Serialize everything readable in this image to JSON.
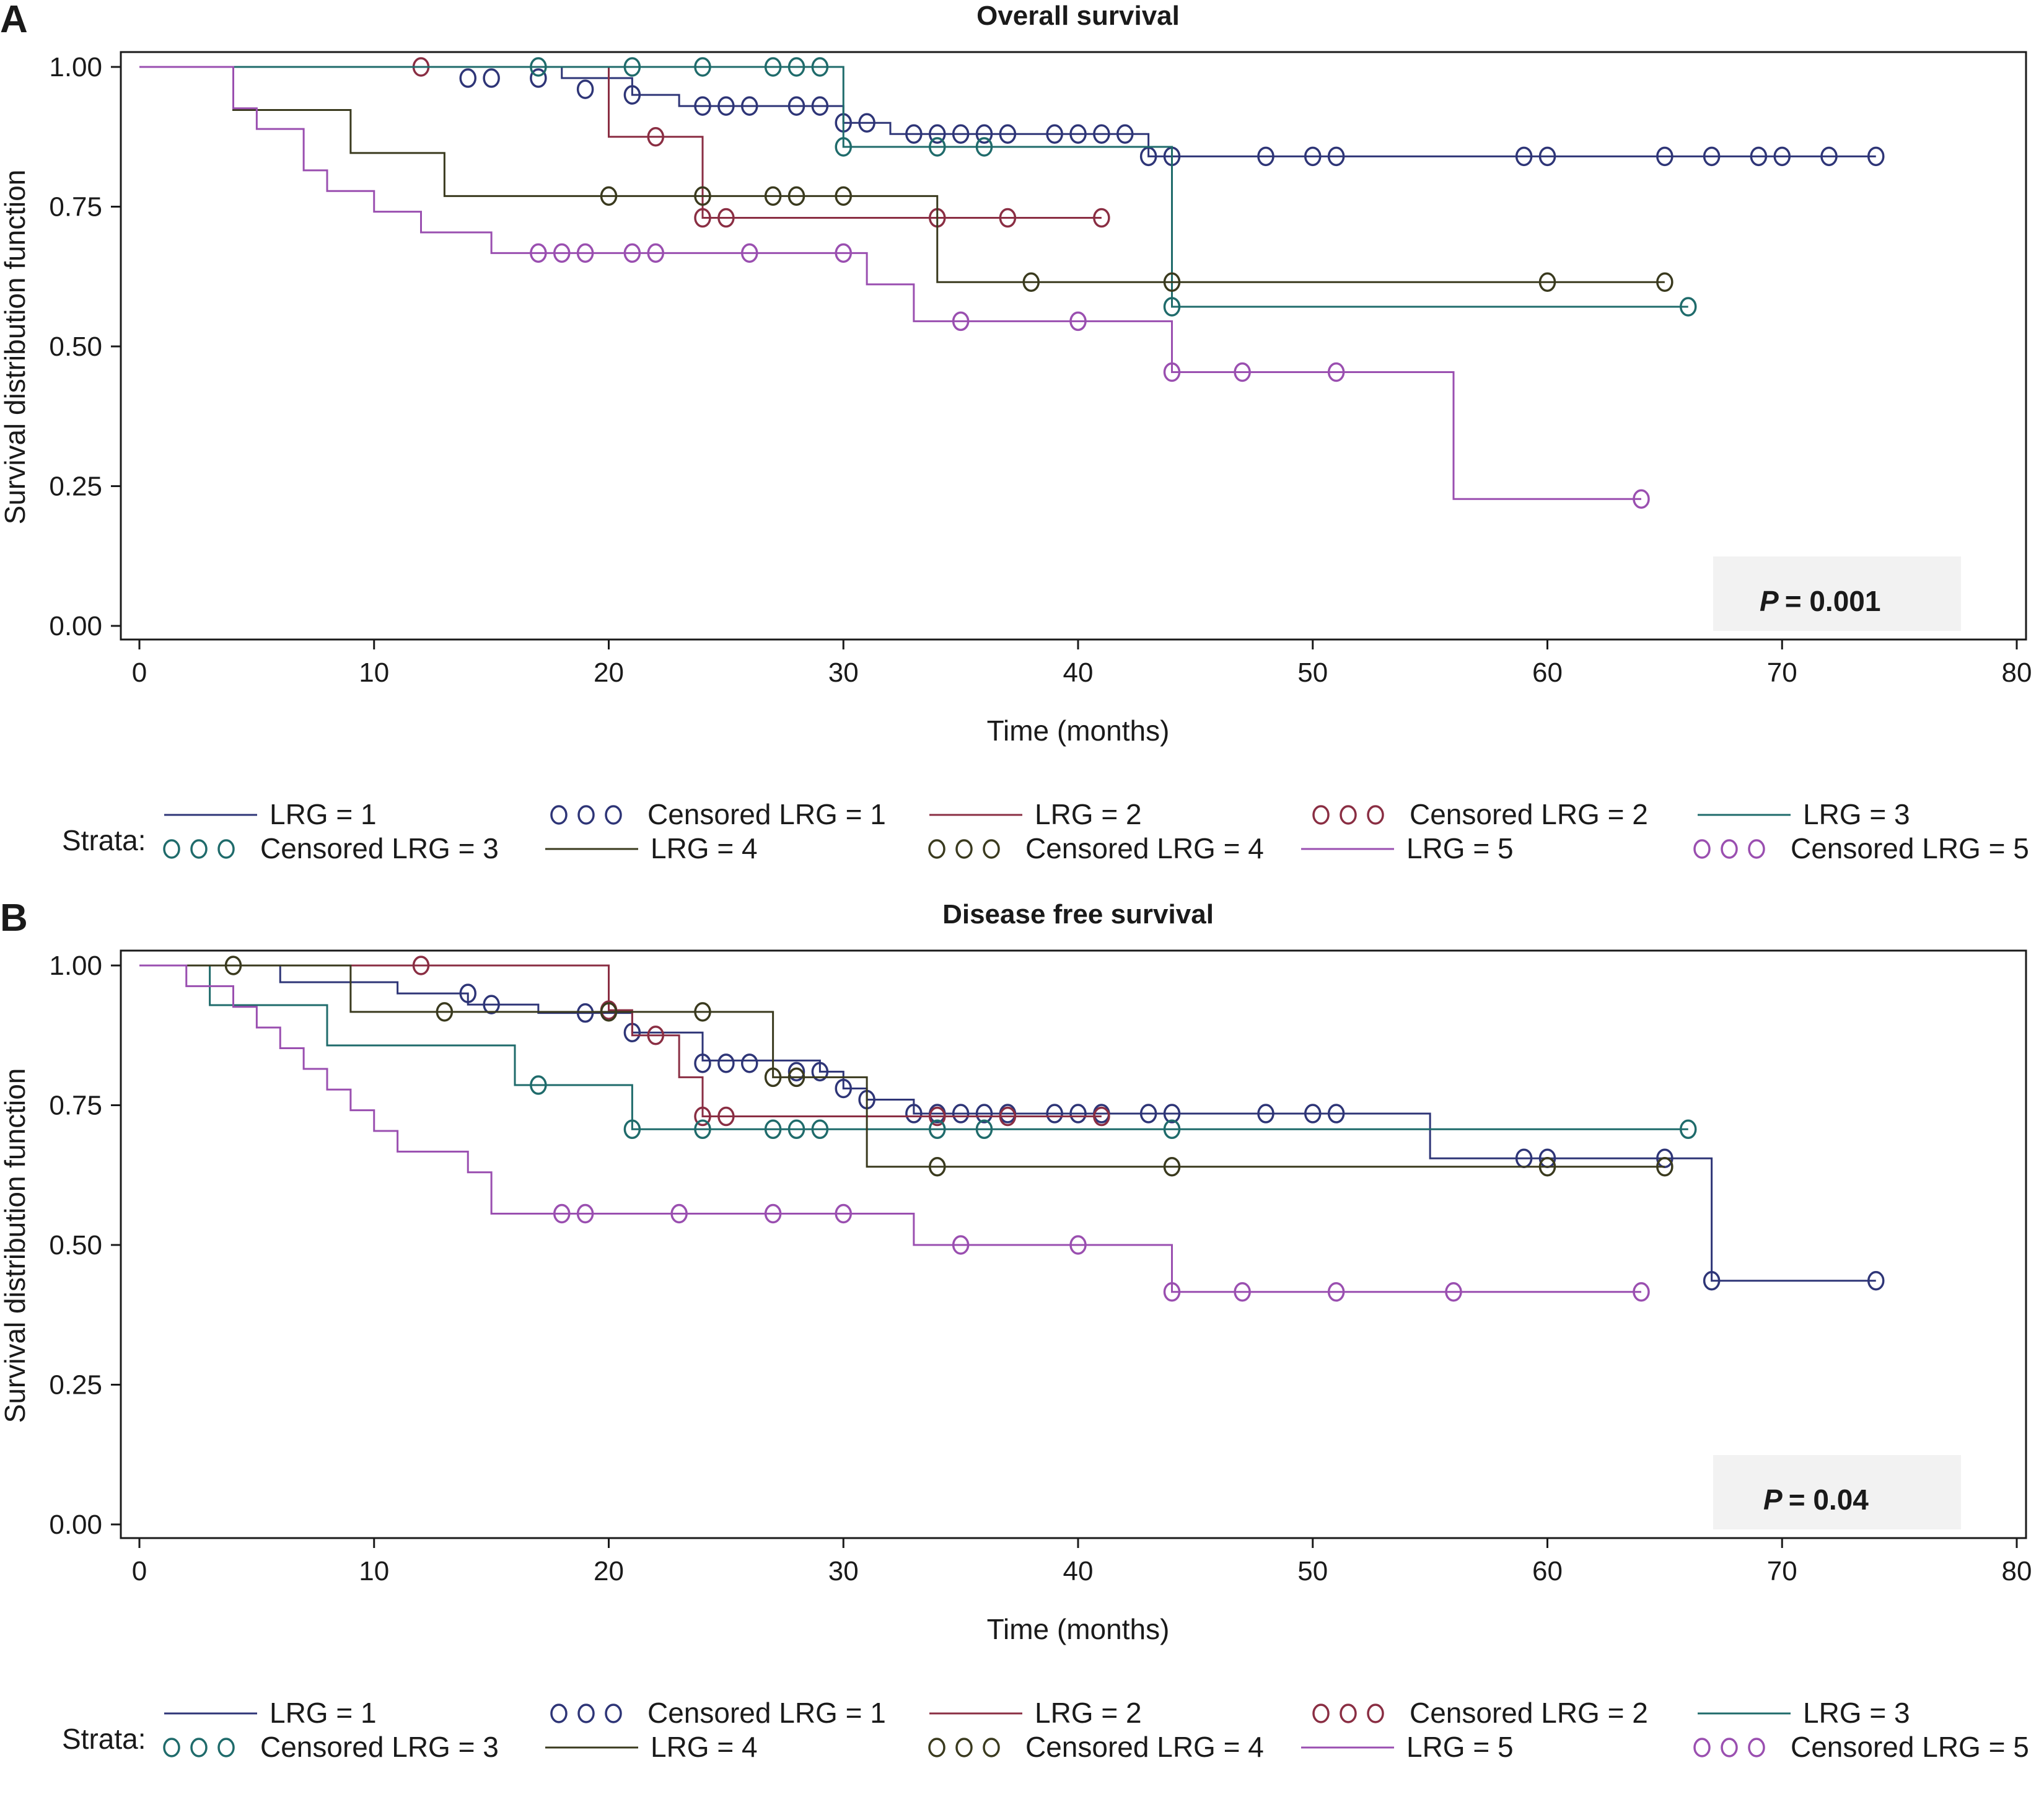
{
  "colors": {
    "LRG1": "#2e3577",
    "LRG2": "#8a2e43",
    "LRG3": "#1f6b6b",
    "LRG4": "#3a3a1e",
    "LRG5": "#9a4fb0",
    "pbox": "#f2f2f2",
    "frame": "#1a1a1a"
  },
  "chart_data": [
    {
      "type": "line",
      "panel_label": "A",
      "title": "Overall survival",
      "xlabel": "Time (months)",
      "ylabel": "Survival distribution function",
      "xlim": [
        0,
        80
      ],
      "ylim": [
        0,
        1
      ],
      "xticks": [
        0,
        10,
        20,
        30,
        40,
        50,
        60,
        70,
        80
      ],
      "yticks": [
        "0.00",
        "0.25",
        "0.50",
        "0.75",
        "1.00"
      ],
      "p_label": "P",
      "p_value": "= 0.001",
      "series": [
        {
          "name": "LRG = 1",
          "color_key": "LRG1",
          "steps": [
            [
              0,
              1.0
            ],
            [
              18,
              0.98
            ],
            [
              21,
              0.95
            ],
            [
              23,
              0.93
            ],
            [
              30,
              0.9
            ],
            [
              32,
              0.88
            ],
            [
              43,
              0.84
            ],
            [
              74,
              0.84
            ]
          ],
          "censored": [
            [
              14,
              0.98
            ],
            [
              15,
              0.98
            ],
            [
              17,
              0.98
            ],
            [
              19,
              0.96
            ],
            [
              21,
              0.95
            ],
            [
              24,
              0.93
            ],
            [
              25,
              0.93
            ],
            [
              26,
              0.93
            ],
            [
              28,
              0.93
            ],
            [
              29,
              0.93
            ],
            [
              30,
              0.9
            ],
            [
              31,
              0.9
            ],
            [
              33,
              0.88
            ],
            [
              34,
              0.88
            ],
            [
              35,
              0.88
            ],
            [
              36,
              0.88
            ],
            [
              37,
              0.88
            ],
            [
              39,
              0.88
            ],
            [
              40,
              0.88
            ],
            [
              41,
              0.88
            ],
            [
              42,
              0.88
            ],
            [
              43,
              0.84
            ],
            [
              44,
              0.84
            ],
            [
              48,
              0.84
            ],
            [
              50,
              0.84
            ],
            [
              51,
              0.84
            ],
            [
              59,
              0.84
            ],
            [
              60,
              0.84
            ],
            [
              65,
              0.84
            ],
            [
              67,
              0.84
            ],
            [
              69,
              0.84
            ],
            [
              70,
              0.84
            ],
            [
              72,
              0.84
            ],
            [
              74,
              0.84
            ]
          ]
        },
        {
          "name": "LRG = 2",
          "color_key": "LRG2",
          "steps": [
            [
              0,
              1.0
            ],
            [
              20,
              0.875
            ],
            [
              24,
              0.73
            ],
            [
              41,
              0.73
            ]
          ],
          "censored": [
            [
              12,
              1.0
            ],
            [
              22,
              0.875
            ],
            [
              24,
              0.73
            ],
            [
              25,
              0.73
            ],
            [
              34,
              0.73
            ],
            [
              37,
              0.73
            ],
            [
              41,
              0.73
            ]
          ]
        },
        {
          "name": "LRG = 3",
          "color_key": "LRG3",
          "steps": [
            [
              0,
              1.0
            ],
            [
              30,
              0.857
            ],
            [
              44,
              0.571
            ],
            [
              66,
              0.571
            ]
          ],
          "censored": [
            [
              17,
              1.0
            ],
            [
              21,
              1.0
            ],
            [
              24,
              1.0
            ],
            [
              27,
              1.0
            ],
            [
              28,
              1.0
            ],
            [
              29,
              1.0
            ],
            [
              30,
              0.857
            ],
            [
              34,
              0.857
            ],
            [
              36,
              0.857
            ],
            [
              44,
              0.571
            ],
            [
              66,
              0.571
            ]
          ]
        },
        {
          "name": "LRG = 4",
          "color_key": "LRG4",
          "steps": [
            [
              0,
              1.0
            ],
            [
              4,
              0.923
            ],
            [
              9,
              0.846
            ],
            [
              13,
              0.769
            ],
            [
              34,
              0.615
            ],
            [
              65,
              0.615
            ]
          ],
          "censored": [
            [
              20,
              0.769
            ],
            [
              24,
              0.769
            ],
            [
              27,
              0.769
            ],
            [
              28,
              0.769
            ],
            [
              30,
              0.769
            ],
            [
              38,
              0.615
            ],
            [
              44,
              0.615
            ],
            [
              60,
              0.615
            ],
            [
              65,
              0.615
            ]
          ]
        },
        {
          "name": "LRG = 5",
          "color_key": "LRG5",
          "steps": [
            [
              0,
              1.0
            ],
            [
              4,
              0.926
            ],
            [
              5,
              0.889
            ],
            [
              7,
              0.815
            ],
            [
              8,
              0.778
            ],
            [
              10,
              0.741
            ],
            [
              12,
              0.704
            ],
            [
              15,
              0.667
            ],
            [
              31,
              0.611
            ],
            [
              33,
              0.545
            ],
            [
              44,
              0.454
            ],
            [
              56,
              0.227
            ],
            [
              64,
              0.227
            ]
          ],
          "censored": [
            [
              17,
              0.667
            ],
            [
              18,
              0.667
            ],
            [
              19,
              0.667
            ],
            [
              21,
              0.667
            ],
            [
              22,
              0.667
            ],
            [
              26,
              0.667
            ],
            [
              30,
              0.667
            ],
            [
              35,
              0.545
            ],
            [
              40,
              0.545
            ],
            [
              44,
              0.454
            ],
            [
              47,
              0.454
            ],
            [
              51,
              0.454
            ],
            [
              64,
              0.227
            ]
          ]
        }
      ]
    },
    {
      "type": "line",
      "panel_label": "B",
      "title": "Disease free survival",
      "xlabel": "Time (months)",
      "ylabel": "Survival distribution function",
      "xlim": [
        0,
        80
      ],
      "ylim": [
        0,
        1
      ],
      "xticks": [
        0,
        10,
        20,
        30,
        40,
        50,
        60,
        70,
        80
      ],
      "yticks": [
        "0.00",
        "0.25",
        "0.50",
        "0.75",
        "1.00"
      ],
      "p_label": "P",
      "p_value": "= 0.04",
      "series": [
        {
          "name": "LRG = 1",
          "color_key": "LRG1",
          "steps": [
            [
              0,
              1.0
            ],
            [
              6,
              0.97
            ],
            [
              11,
              0.95
            ],
            [
              14,
              0.93
            ],
            [
              17,
              0.915
            ],
            [
              21,
              0.88
            ],
            [
              24,
              0.83
            ],
            [
              29,
              0.81
            ],
            [
              30,
              0.78
            ],
            [
              31,
              0.76
            ],
            [
              33,
              0.735
            ],
            [
              55,
              0.655
            ],
            [
              67,
              0.436
            ],
            [
              74,
              0.436
            ]
          ],
          "censored": [
            [
              14,
              0.95
            ],
            [
              15,
              0.93
            ],
            [
              19,
              0.915
            ],
            [
              21,
              0.88
            ],
            [
              24,
              0.825
            ],
            [
              25,
              0.825
            ],
            [
              26,
              0.825
            ],
            [
              28,
              0.81
            ],
            [
              29,
              0.81
            ],
            [
              30,
              0.78
            ],
            [
              31,
              0.76
            ],
            [
              33,
              0.735
            ],
            [
              34,
              0.735
            ],
            [
              35,
              0.735
            ],
            [
              36,
              0.735
            ],
            [
              37,
              0.735
            ],
            [
              39,
              0.735
            ],
            [
              40,
              0.735
            ],
            [
              41,
              0.735
            ],
            [
              43,
              0.735
            ],
            [
              44,
              0.735
            ],
            [
              48,
              0.735
            ],
            [
              50,
              0.735
            ],
            [
              51,
              0.735
            ],
            [
              59,
              0.655
            ],
            [
              60,
              0.655
            ],
            [
              65,
              0.655
            ],
            [
              67,
              0.436
            ],
            [
              74,
              0.436
            ]
          ]
        },
        {
          "name": "LRG = 2",
          "color_key": "LRG2",
          "steps": [
            [
              0,
              1.0
            ],
            [
              20,
              0.92
            ],
            [
              21,
              0.875
            ],
            [
              23,
              0.8
            ],
            [
              24,
              0.73
            ],
            [
              41,
              0.73
            ]
          ],
          "censored": [
            [
              12,
              1.0
            ],
            [
              20,
              0.92
            ],
            [
              22,
              0.875
            ],
            [
              24,
              0.73
            ],
            [
              25,
              0.73
            ],
            [
              34,
              0.73
            ],
            [
              37,
              0.73
            ],
            [
              41,
              0.73
            ]
          ]
        },
        {
          "name": "LRG = 3",
          "color_key": "LRG3",
          "steps": [
            [
              0,
              1.0
            ],
            [
              3,
              0.929
            ],
            [
              8,
              0.857
            ],
            [
              16,
              0.786
            ],
            [
              21,
              0.707
            ],
            [
              66,
              0.707
            ]
          ],
          "censored": [
            [
              17,
              0.786
            ],
            [
              21,
              0.707
            ],
            [
              24,
              0.707
            ],
            [
              27,
              0.707
            ],
            [
              28,
              0.707
            ],
            [
              29,
              0.707
            ],
            [
              34,
              0.707
            ],
            [
              36,
              0.707
            ],
            [
              44,
              0.707
            ],
            [
              66,
              0.707
            ]
          ]
        },
        {
          "name": "LRG = 4",
          "color_key": "LRG4",
          "steps": [
            [
              0,
              1.0
            ],
            [
              9,
              0.917
            ],
            [
              27,
              0.8
            ],
            [
              31,
              0.64
            ],
            [
              65,
              0.64
            ]
          ],
          "censored": [
            [
              4,
              1.0
            ],
            [
              13,
              0.917
            ],
            [
              20,
              0.917
            ],
            [
              24,
              0.917
            ],
            [
              27,
              0.8
            ],
            [
              28,
              0.8
            ],
            [
              34,
              0.64
            ],
            [
              44,
              0.64
            ],
            [
              60,
              0.64
            ],
            [
              65,
              0.64
            ]
          ]
        },
        {
          "name": "LRG = 5",
          "color_key": "LRG5",
          "steps": [
            [
              0,
              1.0
            ],
            [
              2,
              0.963
            ],
            [
              4,
              0.926
            ],
            [
              5,
              0.889
            ],
            [
              6,
              0.852
            ],
            [
              7,
              0.815
            ],
            [
              8,
              0.778
            ],
            [
              9,
              0.741
            ],
            [
              10,
              0.704
            ],
            [
              11,
              0.667
            ],
            [
              14,
              0.63
            ],
            [
              15,
              0.556
            ],
            [
              33,
              0.5
            ],
            [
              44,
              0.416
            ],
            [
              64,
              0.416
            ]
          ],
          "censored": [
            [
              18,
              0.556
            ],
            [
              19,
              0.556
            ],
            [
              23,
              0.556
            ],
            [
              27,
              0.556
            ],
            [
              30,
              0.556
            ],
            [
              35,
              0.5
            ],
            [
              40,
              0.5
            ],
            [
              44,
              0.416
            ],
            [
              47,
              0.416
            ],
            [
              51,
              0.416
            ],
            [
              56,
              0.416
            ],
            [
              64,
              0.416
            ]
          ]
        }
      ]
    }
  ],
  "legend": {
    "strata_label": "Strata:",
    "rows": [
      [
        {
          "label": "LRG = 1",
          "kind": "line",
          "color_key": "LRG1"
        },
        {
          "label": "Censored LRG = 1",
          "kind": "marker",
          "color_key": "LRG1"
        },
        {
          "label": "LRG = 2",
          "kind": "line",
          "color_key": "LRG2"
        },
        {
          "label": "Censored LRG = 2",
          "kind": "marker",
          "color_key": "LRG2"
        },
        {
          "label": "LRG = 3",
          "kind": "line",
          "color_key": "LRG3"
        }
      ],
      [
        {
          "label": "Censored LRG = 3",
          "kind": "marker",
          "color_key": "LRG3"
        },
        {
          "label": "LRG = 4",
          "kind": "line",
          "color_key": "LRG4"
        },
        {
          "label": "Censored LRG = 4",
          "kind": "marker",
          "color_key": "LRG4"
        },
        {
          "label": "LRG = 5",
          "kind": "line",
          "color_key": "LRG5"
        },
        {
          "label": "Censored LRG = 5",
          "kind": "marker",
          "color_key": "LRG5"
        }
      ]
    ]
  }
}
